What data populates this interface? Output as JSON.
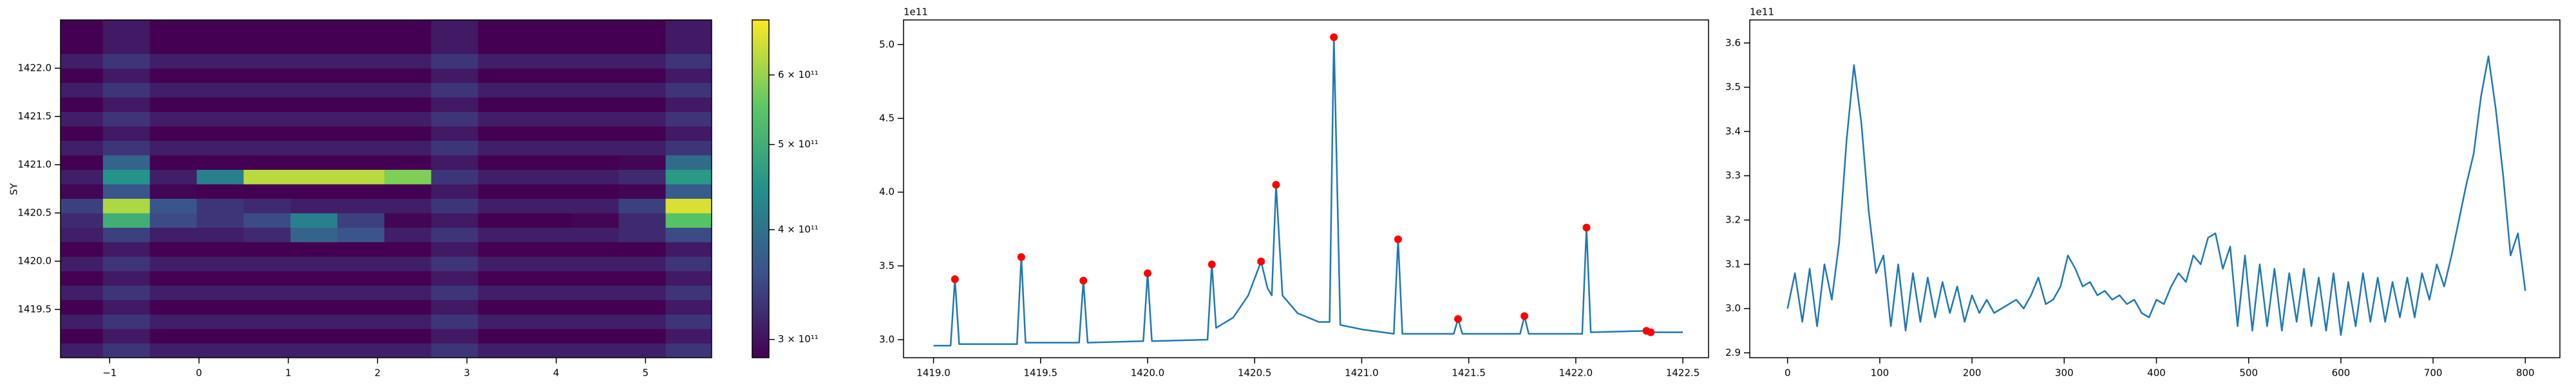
{
  "chart_data": [
    {
      "type": "heatmap",
      "ylabel": "SY",
      "colormap": "viridis",
      "x": [
        -1.3375,
        -0.8125,
        -0.2875,
        0.2375,
        0.7625,
        1.2875,
        1.8125,
        2.3375,
        2.8625,
        3.3875,
        3.9125,
        4.4375,
        4.9625,
        5.4875
      ],
      "y": [
        1419.075,
        1419.225,
        1419.375,
        1419.525,
        1419.675,
        1419.825,
        1419.975,
        1420.125,
        1420.275,
        1420.425,
        1420.575,
        1420.725,
        1420.875,
        1421.025,
        1421.175,
        1421.325,
        1421.475,
        1421.625,
        1421.775,
        1421.925,
        1422.075,
        1422.225,
        1422.375,
        1422.525
      ],
      "z": [
        [
          310000000000.0,
          330000000000.0,
          310000000000.0,
          310000000000.0,
          310000000000.0,
          310000000000.0,
          310000000000.0,
          310000000000.0,
          330000000000.0,
          310000000000.0,
          310000000000.0,
          310000000000.0,
          310000000000.0,
          330000000000.0
        ],
        [
          285000000000.0,
          305000000000.0,
          285000000000.0,
          285000000000.0,
          285000000000.0,
          285000000000.0,
          285000000000.0,
          285000000000.0,
          305000000000.0,
          285000000000.0,
          285000000000.0,
          285000000000.0,
          285000000000.0,
          305000000000.0
        ],
        [
          310000000000.0,
          330000000000.0,
          310000000000.0,
          310000000000.0,
          310000000000.0,
          310000000000.0,
          310000000000.0,
          310000000000.0,
          330000000000.0,
          310000000000.0,
          310000000000.0,
          310000000000.0,
          310000000000.0,
          330000000000.0
        ],
        [
          285000000000.0,
          305000000000.0,
          285000000000.0,
          285000000000.0,
          285000000000.0,
          285000000000.0,
          285000000000.0,
          285000000000.0,
          305000000000.0,
          285000000000.0,
          285000000000.0,
          285000000000.0,
          285000000000.0,
          305000000000.0
        ],
        [
          310000000000.0,
          330000000000.0,
          310000000000.0,
          310000000000.0,
          310000000000.0,
          310000000000.0,
          310000000000.0,
          310000000000.0,
          330000000000.0,
          310000000000.0,
          310000000000.0,
          310000000000.0,
          310000000000.0,
          330000000000.0
        ],
        [
          285000000000.0,
          305000000000.0,
          285000000000.0,
          285000000000.0,
          285000000000.0,
          285000000000.0,
          285000000000.0,
          285000000000.0,
          305000000000.0,
          285000000000.0,
          285000000000.0,
          285000000000.0,
          285000000000.0,
          305000000000.0
        ],
        [
          310000000000.0,
          330000000000.0,
          310000000000.0,
          310000000000.0,
          310000000000.0,
          310000000000.0,
          310000000000.0,
          310000000000.0,
          330000000000.0,
          310000000000.0,
          310000000000.0,
          310000000000.0,
          310000000000.0,
          330000000000.0
        ],
        [
          285000000000.0,
          305000000000.0,
          285000000000.0,
          285000000000.0,
          285000000000.0,
          285000000000.0,
          285000000000.0,
          285000000000.0,
          305000000000.0,
          285000000000.0,
          285000000000.0,
          285000000000.0,
          285000000000.0,
          305000000000.0
        ],
        [
          310000000000.0,
          340000000000.0,
          310000000000.0,
          310000000000.0,
          320000000000.0,
          380000000000.0,
          360000000000.0,
          310000000000.0,
          330000000000.0,
          310000000000.0,
          310000000000.0,
          310000000000.0,
          320000000000.0,
          350000000000.0
        ],
        [
          320000000000.0,
          500000000000.0,
          350000000000.0,
          330000000000.0,
          350000000000.0,
          420000000000.0,
          340000000000.0,
          290000000000.0,
          305000000000.0,
          285000000000.0,
          285000000000.0,
          290000000000.0,
          320000000000.0,
          540000000000.0
        ],
        [
          340000000000.0,
          620000000000.0,
          360000000000.0,
          330000000000.0,
          320000000000.0,
          310000000000.0,
          310000000000.0,
          310000000000.0,
          330000000000.0,
          310000000000.0,
          310000000000.0,
          310000000000.0,
          340000000000.0,
          660000000000.0
        ],
        [
          290000000000.0,
          360000000000.0,
          290000000000.0,
          285000000000.0,
          285000000000.0,
          285000000000.0,
          285000000000.0,
          285000000000.0,
          305000000000.0,
          285000000000.0,
          285000000000.0,
          285000000000.0,
          290000000000.0,
          370000000000.0
        ],
        [
          310000000000.0,
          450000000000.0,
          310000000000.0,
          420000000000.0,
          630000000000.0,
          630000000000.0,
          630000000000.0,
          580000000000.0,
          330000000000.0,
          310000000000.0,
          310000000000.0,
          310000000000.0,
          320000000000.0,
          460000000000.0
        ],
        [
          285000000000.0,
          380000000000.0,
          285000000000.0,
          285000000000.0,
          285000000000.0,
          285000000000.0,
          285000000000.0,
          285000000000.0,
          305000000000.0,
          285000000000.0,
          285000000000.0,
          285000000000.0,
          290000000000.0,
          390000000000.0
        ],
        [
          310000000000.0,
          330000000000.0,
          310000000000.0,
          310000000000.0,
          310000000000.0,
          310000000000.0,
          310000000000.0,
          310000000000.0,
          330000000000.0,
          310000000000.0,
          310000000000.0,
          310000000000.0,
          310000000000.0,
          330000000000.0
        ],
        [
          285000000000.0,
          305000000000.0,
          285000000000.0,
          285000000000.0,
          285000000000.0,
          285000000000.0,
          285000000000.0,
          285000000000.0,
          305000000000.0,
          285000000000.0,
          285000000000.0,
          285000000000.0,
          285000000000.0,
          305000000000.0
        ],
        [
          310000000000.0,
          330000000000.0,
          310000000000.0,
          310000000000.0,
          310000000000.0,
          310000000000.0,
          310000000000.0,
          310000000000.0,
          330000000000.0,
          310000000000.0,
          310000000000.0,
          310000000000.0,
          310000000000.0,
          330000000000.0
        ],
        [
          285000000000.0,
          305000000000.0,
          285000000000.0,
          285000000000.0,
          285000000000.0,
          285000000000.0,
          285000000000.0,
          285000000000.0,
          305000000000.0,
          285000000000.0,
          285000000000.0,
          285000000000.0,
          285000000000.0,
          305000000000.0
        ],
        [
          310000000000.0,
          330000000000.0,
          310000000000.0,
          310000000000.0,
          310000000000.0,
          310000000000.0,
          310000000000.0,
          310000000000.0,
          330000000000.0,
          310000000000.0,
          310000000000.0,
          310000000000.0,
          310000000000.0,
          330000000000.0
        ],
        [
          285000000000.0,
          305000000000.0,
          285000000000.0,
          285000000000.0,
          285000000000.0,
          285000000000.0,
          285000000000.0,
          285000000000.0,
          305000000000.0,
          285000000000.0,
          285000000000.0,
          285000000000.0,
          285000000000.0,
          305000000000.0
        ],
        [
          310000000000.0,
          330000000000.0,
          310000000000.0,
          310000000000.0,
          310000000000.0,
          310000000000.0,
          310000000000.0,
          310000000000.0,
          330000000000.0,
          310000000000.0,
          310000000000.0,
          310000000000.0,
          310000000000.0,
          330000000000.0
        ],
        [
          285000000000.0,
          305000000000.0,
          285000000000.0,
          285000000000.0,
          285000000000.0,
          285000000000.0,
          285000000000.0,
          285000000000.0,
          305000000000.0,
          285000000000.0,
          285000000000.0,
          285000000000.0,
          285000000000.0,
          305000000000.0
        ],
        [
          285000000000.0,
          305000000000.0,
          285000000000.0,
          285000000000.0,
          285000000000.0,
          285000000000.0,
          285000000000.0,
          285000000000.0,
          305000000000.0,
          285000000000.0,
          285000000000.0,
          285000000000.0,
          285000000000.0,
          305000000000.0
        ],
        [
          285000000000.0,
          305000000000.0,
          285000000000.0,
          285000000000.0,
          285000000000.0,
          285000000000.0,
          285000000000.0,
          285000000000.0,
          305000000000.0,
          285000000000.0,
          285000000000.0,
          285000000000.0,
          285000000000.0,
          305000000000.0
        ]
      ],
      "xlim": [
        -1.55,
        5.74
      ],
      "ylim": [
        1419.0,
        1422.5
      ],
      "xticks": [
        {
          "value": -1,
          "label": "−1"
        },
        0,
        1,
        2,
        3,
        4,
        5
      ],
      "yticks": [
        1419.5,
        {
          "value": 1420,
          "label": "1420.0"
        },
        1420.5,
        {
          "value": 1421,
          "label": "1421.0"
        },
        1421.5,
        {
          "value": 1422,
          "label": "1422.0"
        }
      ],
      "colorbar": {
        "scale": "log",
        "lim": [
          286000000000.0,
          693000000000.0
        ],
        "ticks": [
          {
            "value": 300000000000.0,
            "label": "3 × 10¹¹"
          },
          {
            "value": 400000000000.0,
            "label": "4 × 10¹¹"
          },
          {
            "value": 500000000000.0,
            "label": "5 × 10¹¹"
          },
          {
            "value": 600000000000.0,
            "label": "6 × 10¹¹"
          }
        ]
      }
    },
    {
      "type": "line",
      "offset_label": "1e11",
      "xlim": [
        1418.86,
        1422.62
      ],
      "ylim": [
        2.878,
        5.167
      ],
      "xticks": [
        {
          "value": 1419,
          "label": "1419.0"
        },
        1419.5,
        {
          "value": 1420,
          "label": "1420.0"
        },
        1420.5,
        {
          "value": 1421,
          "label": "1421.0"
        },
        1421.5,
        {
          "value": 1422,
          "label": "1422.0"
        },
        1422.5
      ],
      "yticks": [
        {
          "value": 3,
          "label": "3.0"
        },
        3.5,
        {
          "value": 4,
          "label": "4.0"
        },
        4.5,
        {
          "value": 5,
          "label": "5.0"
        }
      ],
      "series": [
        {
          "color": "#1f77b4",
          "x": [
            1419.0,
            1419.08,
            1419.1,
            1419.12,
            1419.39,
            1419.41,
            1419.43,
            1419.68,
            1419.7,
            1419.72,
            1419.98,
            1420.0,
            1420.02,
            1420.28,
            1420.3,
            1420.32,
            1420.4,
            1420.47,
            1420.53,
            1420.56,
            1420.58,
            1420.6,
            1420.63,
            1420.7,
            1420.8,
            1420.85,
            1420.87,
            1420.9,
            1421.0,
            1421.15,
            1421.17,
            1421.19,
            1421.43,
            1421.45,
            1421.47,
            1421.74,
            1421.76,
            1421.78,
            1422.03,
            1422.05,
            1422.07,
            1422.33,
            1422.35,
            1422.5
          ],
          "values": [
            2.96,
            2.96,
            3.41,
            2.97,
            2.97,
            3.56,
            2.98,
            2.98,
            3.4,
            2.98,
            2.99,
            3.45,
            2.99,
            3.0,
            3.51,
            3.08,
            3.15,
            3.3,
            3.53,
            3.35,
            3.3,
            4.05,
            3.3,
            3.18,
            3.12,
            3.12,
            5.05,
            3.1,
            3.07,
            3.04,
            3.68,
            3.04,
            3.04,
            3.14,
            3.04,
            3.04,
            3.16,
            3.04,
            3.04,
            3.76,
            3.05,
            3.06,
            3.05,
            3.05
          ]
        },
        {
          "color": "red",
          "marker": "o",
          "x": [
            1419.1,
            1419.41,
            1419.7,
            1420.0,
            1420.3,
            1420.53,
            1420.6,
            1420.87,
            1421.17,
            1421.45,
            1421.76,
            1422.05,
            1422.33,
            1422.35
          ],
          "values": [
            3.41,
            3.56,
            3.4,
            3.45,
            3.51,
            3.53,
            4.05,
            5.05,
            3.68,
            3.14,
            3.16,
            3.76,
            3.06,
            3.05
          ]
        }
      ]
    },
    {
      "type": "line",
      "offset_label": "1e11",
      "xlim": [
        -41,
        837.5
      ],
      "ylim": [
        2.889,
        3.652
      ],
      "xticks": [
        0,
        100,
        200,
        300,
        400,
        500,
        600,
        700,
        800
      ],
      "yticks": [
        2.9,
        {
          "value": 3,
          "label": "3.0"
        },
        3.1,
        3.2,
        3.3,
        3.4,
        3.5,
        3.6
      ],
      "series": [
        {
          "color": "#1f77b4",
          "x": [
            0,
            8,
            16,
            24,
            32,
            40,
            48,
            56,
            64,
            72,
            80,
            88,
            96,
            104,
            112,
            120,
            128,
            136,
            144,
            152,
            160,
            168,
            176,
            184,
            192,
            200,
            208,
            216,
            224,
            232,
            240,
            248,
            256,
            264,
            272,
            280,
            288,
            296,
            304,
            312,
            320,
            328,
            336,
            344,
            352,
            360,
            368,
            376,
            384,
            392,
            400,
            408,
            416,
            424,
            432,
            440,
            448,
            456,
            464,
            472,
            480,
            488,
            496,
            504,
            512,
            520,
            528,
            536,
            544,
            552,
            560,
            568,
            576,
            584,
            592,
            600,
            608,
            616,
            624,
            632,
            640,
            648,
            656,
            664,
            672,
            680,
            688,
            696,
            704,
            712,
            720,
            728,
            736,
            744,
            752,
            760,
            768,
            776,
            784,
            792,
            800
          ],
          "values": [
            3.0,
            3.08,
            2.97,
            3.09,
            2.96,
            3.1,
            3.02,
            3.15,
            3.38,
            3.55,
            3.42,
            3.22,
            3.08,
            3.12,
            2.96,
            3.1,
            2.95,
            3.08,
            2.97,
            3.07,
            2.98,
            3.06,
            2.99,
            3.05,
            2.97,
            3.03,
            2.99,
            3.02,
            2.99,
            3.0,
            3.01,
            3.02,
            3.0,
            3.03,
            3.07,
            3.01,
            3.02,
            3.05,
            3.12,
            3.09,
            3.05,
            3.06,
            3.03,
            3.04,
            3.02,
            3.03,
            3.01,
            3.02,
            2.99,
            2.98,
            3.02,
            3.01,
            3.05,
            3.08,
            3.06,
            3.12,
            3.1,
            3.16,
            3.17,
            3.09,
            3.14,
            2.96,
            3.12,
            2.95,
            3.1,
            2.96,
            3.09,
            2.95,
            3.08,
            2.97,
            3.09,
            2.96,
            3.07,
            2.95,
            3.08,
            2.94,
            3.06,
            2.96,
            3.08,
            2.97,
            3.07,
            2.97,
            3.06,
            2.98,
            3.07,
            2.98,
            3.08,
            3.02,
            3.1,
            3.05,
            3.12,
            3.2,
            3.28,
            3.35,
            3.48,
            3.57,
            3.45,
            3.3,
            3.12,
            3.17,
            3.04
          ]
        }
      ]
    }
  ]
}
